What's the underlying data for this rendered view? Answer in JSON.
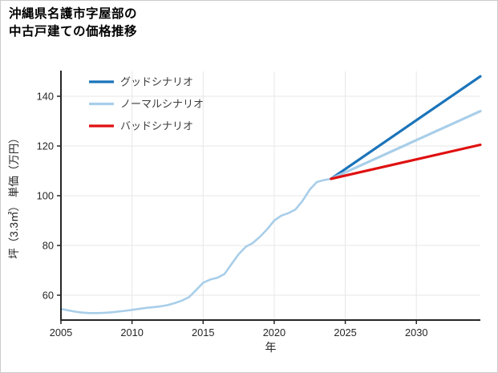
{
  "figure": {
    "title_line1": "沖縄県名護市字屋部の",
    "title_line2": "中古戸建ての価格推移"
  },
  "chart_data": {
    "type": "line",
    "title": "沖縄県名護市字屋部の中古戸建ての価格推移",
    "xlabel": "年",
    "ylabel": "坪（3.3㎡） 単価（万円）",
    "xlim": [
      2005,
      2034.5
    ],
    "ylim": [
      50,
      150
    ],
    "xticks": [
      2005,
      2010,
      2015,
      2020,
      2025,
      2030
    ],
    "yticks": [
      60,
      80,
      100,
      120,
      140
    ],
    "grid": true,
    "legend_position": "upper-left",
    "colors": {
      "grid": "#e7e7e7",
      "axis": "#262626",
      "tick_label": "#262626",
      "legend_text": "#3c3c3c",
      "good": "#1b74ba",
      "normal": "#a8cee9",
      "bad": "#e01010",
      "history": "#a8cee9"
    },
    "series": [
      {
        "key": "history",
        "color": "#a8cee9",
        "width": 2.6,
        "x": [
          2005,
          2005.5,
          2006,
          2006.5,
          2007,
          2007.5,
          2008,
          2008.5,
          2009,
          2009.5,
          2010,
          2010.5,
          2011,
          2011.5,
          2012,
          2012.5,
          2013,
          2013.5,
          2014,
          2014.5,
          2015,
          2015.5,
          2016,
          2016.5,
          2017,
          2017.5,
          2018,
          2018.5,
          2019,
          2019.5,
          2020,
          2020.5,
          2021,
          2021.5,
          2022,
          2022.5,
          2023,
          2023.5,
          2024
        ],
        "y": [
          54.5,
          53.9,
          53.4,
          53.0,
          52.8,
          52.8,
          52.9,
          53.1,
          53.4,
          53.7,
          54.1,
          54.5,
          54.9,
          55.2,
          55.5,
          56.0,
          56.8,
          57.8,
          59.2,
          62.0,
          65.0,
          66.3,
          67.0,
          68.5,
          72.5,
          76.5,
          79.5,
          81.0,
          83.5,
          86.5,
          90.0,
          92.0,
          93.0,
          94.5,
          98.0,
          102.5,
          105.5,
          106.3,
          106.8
        ]
      },
      {
        "key": "good",
        "label": "グッドシナリオ",
        "color": "#1b74ba",
        "width": 3.2,
        "x": [
          2024,
          2034.5
        ],
        "y": [
          106.8,
          148.0
        ]
      },
      {
        "key": "normal",
        "label": "ノーマルシナリオ",
        "color": "#a8cee9",
        "width": 3.2,
        "x": [
          2024,
          2034.5
        ],
        "y": [
          106.8,
          134.0
        ]
      },
      {
        "key": "bad",
        "label": "バッドシナリオ",
        "color": "#e01010",
        "width": 3.2,
        "x": [
          2024,
          2034.5
        ],
        "y": [
          106.8,
          120.5
        ]
      }
    ],
    "legend": [
      {
        "key": "good",
        "label": "グッドシナリオ",
        "color": "#1b74ba"
      },
      {
        "key": "normal",
        "label": "ノーマルシナリオ",
        "color": "#a8cee9"
      },
      {
        "key": "bad",
        "label": "バッドシナリオ",
        "color": "#e01010"
      }
    ]
  }
}
